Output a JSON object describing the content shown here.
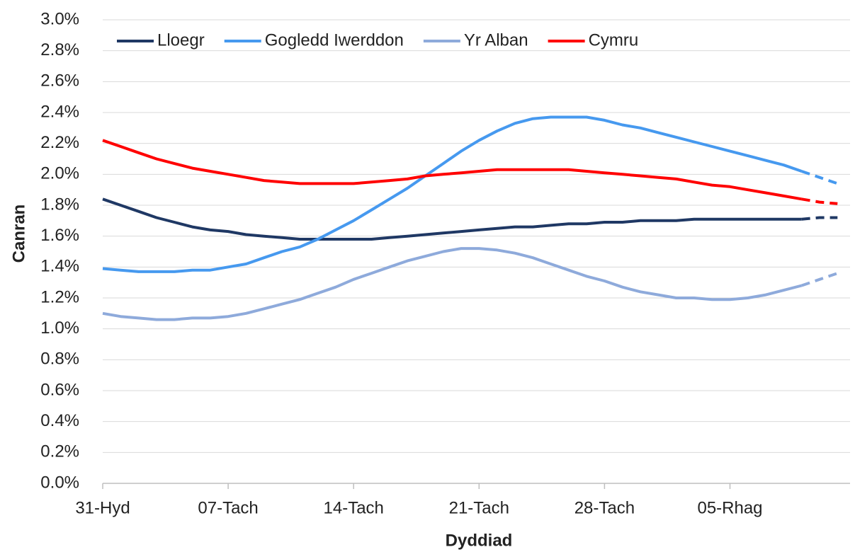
{
  "chart_data": {
    "type": "line",
    "x_label": "Dyddiad",
    "y_label": "Canran",
    "categories": [
      "31-Hyd",
      null,
      null,
      null,
      null,
      null,
      null,
      "07-Tach",
      null,
      null,
      null,
      null,
      null,
      null,
      "14-Tach",
      null,
      null,
      null,
      null,
      null,
      null,
      "21-Tach",
      null,
      null,
      null,
      null,
      null,
      null,
      "28-Tach",
      null,
      null,
      null,
      null,
      null,
      null,
      "05-Rhag",
      null,
      null,
      null,
      null,
      null,
      null
    ],
    "series": [
      {
        "name": "Lloegr",
        "color": "#1f3864",
        "values": [
          1.84,
          1.8,
          1.76,
          1.72,
          1.69,
          1.66,
          1.64,
          1.63,
          1.61,
          1.6,
          1.59,
          1.58,
          1.58,
          1.58,
          1.58,
          1.58,
          1.59,
          1.6,
          1.61,
          1.62,
          1.63,
          1.64,
          1.65,
          1.66,
          1.66,
          1.67,
          1.68,
          1.68,
          1.69,
          1.69,
          1.7,
          1.7,
          1.7,
          1.71,
          1.71,
          1.71,
          1.71,
          1.71,
          1.71,
          1.71,
          1.72,
          1.72
        ]
      },
      {
        "name": "Gogledd Iwerddon",
        "color": "#4699ef",
        "values": [
          1.39,
          1.38,
          1.37,
          1.37,
          1.37,
          1.38,
          1.38,
          1.4,
          1.42,
          1.46,
          1.5,
          1.53,
          1.58,
          1.64,
          1.7,
          1.77,
          1.84,
          1.91,
          1.99,
          2.07,
          2.15,
          2.22,
          2.28,
          2.33,
          2.36,
          2.37,
          2.37,
          2.37,
          2.35,
          2.32,
          2.3,
          2.27,
          2.24,
          2.21,
          2.18,
          2.15,
          2.12,
          2.09,
          2.06,
          2.02,
          1.98,
          1.94
        ]
      },
      {
        "name": "Yr Alban",
        "color": "#8eaadb",
        "values": [
          1.1,
          1.08,
          1.07,
          1.06,
          1.06,
          1.07,
          1.07,
          1.08,
          1.1,
          1.13,
          1.16,
          1.19,
          1.23,
          1.27,
          1.32,
          1.36,
          1.4,
          1.44,
          1.47,
          1.5,
          1.52,
          1.52,
          1.51,
          1.49,
          1.46,
          1.42,
          1.38,
          1.34,
          1.31,
          1.27,
          1.24,
          1.22,
          1.2,
          1.2,
          1.19,
          1.19,
          1.2,
          1.22,
          1.25,
          1.28,
          1.32,
          1.36
        ]
      },
      {
        "name": "Cymru",
        "color": "#ff0000",
        "values": [
          2.22,
          2.18,
          2.14,
          2.1,
          2.07,
          2.04,
          2.02,
          2.0,
          1.98,
          1.96,
          1.95,
          1.94,
          1.94,
          1.94,
          1.94,
          1.95,
          1.96,
          1.97,
          1.99,
          2.0,
          2.01,
          2.02,
          2.03,
          2.03,
          2.03,
          2.03,
          2.03,
          2.02,
          2.01,
          2.0,
          1.99,
          1.98,
          1.97,
          1.95,
          1.93,
          1.92,
          1.9,
          1.88,
          1.86,
          1.84,
          1.82,
          1.81
        ]
      }
    ],
    "dashed_from_index": 39,
    "ylim": [
      0,
      3
    ],
    "yticks": [
      {
        "value": 0,
        "label": "0.0%"
      },
      {
        "value": 0.2,
        "label": "0.2%"
      },
      {
        "value": 0.4,
        "label": "0.4%"
      },
      {
        "value": 0.6,
        "label": "0.6%"
      },
      {
        "value": 0.8,
        "label": "0.8%"
      },
      {
        "value": 1,
        "label": "1.0%"
      },
      {
        "value": 1.2,
        "label": "1.2%"
      },
      {
        "value": 1.4,
        "label": "1.4%"
      },
      {
        "value": 1.6,
        "label": "1.6%"
      },
      {
        "value": 1.8,
        "label": "1.8%"
      },
      {
        "value": 2,
        "label": "2.0%"
      },
      {
        "value": 2.2,
        "label": "2.2%"
      },
      {
        "value": 2.4,
        "label": "2.4%"
      },
      {
        "value": 2.6,
        "label": "2.6%"
      },
      {
        "value": 2.8,
        "label": "2.8%"
      },
      {
        "value": 3,
        "label": "3.0%"
      }
    ],
    "grid": true,
    "legend": "top"
  }
}
